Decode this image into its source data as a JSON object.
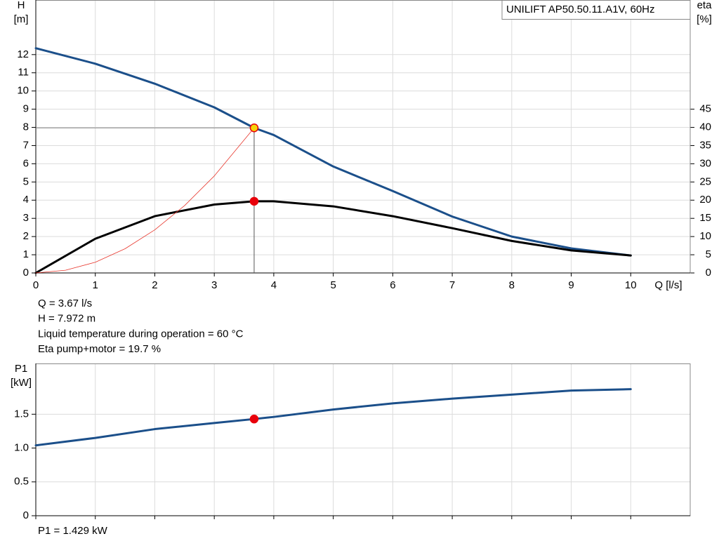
{
  "chart_data": [
    {
      "type": "line",
      "title": "UNILIFT AP50.50.11.A1V, 60Hz",
      "ylabel": [
        "H",
        "[m]"
      ],
      "y2label": [
        "eta",
        "[%]"
      ],
      "xlabel": "Q [l/s]",
      "xlim": [
        0,
        11
      ],
      "ylim": [
        0,
        15
      ],
      "y2lim": [
        0,
        75
      ],
      "xticks": [
        0,
        1,
        2,
        3,
        4,
        5,
        6,
        7,
        8,
        9,
        10
      ],
      "yticks": [
        0,
        1,
        2,
        3,
        4,
        5,
        6,
        7,
        8,
        9,
        10,
        11,
        12
      ],
      "y2ticks": [
        0,
        5,
        10,
        15,
        20,
        25,
        30,
        35,
        40,
        45
      ],
      "grid": true,
      "series": [
        {
          "color": "#1b4f8a",
          "width": 3,
          "x": [
            0,
            1,
            2,
            3,
            3.67,
            4,
            5,
            6,
            7,
            8,
            9,
            10
          ],
          "values": [
            12.35,
            11.5,
            10.4,
            9.1,
            7.972,
            7.58,
            5.85,
            4.5,
            3.1,
            2.0,
            1.35,
            0.96
          ]
        },
        {
          "color": "#000000",
          "width": 3,
          "axis": "y2",
          "x": [
            0,
            1,
            2,
            3,
            3.67,
            4,
            5,
            6,
            7,
            8,
            9,
            10
          ],
          "values": [
            0,
            9.4,
            15.6,
            18.8,
            19.7,
            19.7,
            18.3,
            15.6,
            12.3,
            8.8,
            6.2,
            4.8
          ]
        },
        {
          "color": "#e8362c",
          "width": 0.8,
          "x": [
            0,
            0.5,
            1,
            1.5,
            2,
            2.5,
            3,
            3.67
          ],
          "values": [
            0,
            0.15,
            0.59,
            1.33,
            2.37,
            3.7,
            5.33,
            7.972
          ]
        }
      ],
      "points": [
        {
          "x": 3.67,
          "y": 7.972,
          "color": "#f5d30a",
          "stroke": "#e8000b",
          "guides": true
        },
        {
          "x": 3.67,
          "y": 19.7,
          "axis": "y2",
          "color": "#e8000b",
          "stroke": "#e8000b"
        }
      ],
      "annotations": [
        "Q = 3.67 l/s",
        "H = 7.972 m",
        "Liquid temperature during operation = 60 °C",
        "Eta pump+motor = 19.7 %"
      ]
    },
    {
      "type": "line",
      "ylabel": [
        "P1",
        "[kW]"
      ],
      "xlim": [
        0,
        11
      ],
      "ylim": [
        0,
        2.25
      ],
      "xticks": [
        0,
        1,
        2,
        3,
        4,
        5,
        6,
        7,
        8,
        9,
        10
      ],
      "yticks": [
        0,
        0.5,
        {
          "value": 1.0,
          "label": "1.0"
        },
        1.5
      ],
      "grid": true,
      "series": [
        {
          "color": "#1b4f8a",
          "width": 3,
          "x": [
            0,
            1,
            2,
            3,
            3.67,
            4,
            5,
            6,
            7,
            8,
            9,
            10
          ],
          "values": [
            1.04,
            1.15,
            1.28,
            1.37,
            1.429,
            1.46,
            1.57,
            1.66,
            1.73,
            1.79,
            1.85,
            1.87
          ]
        }
      ],
      "points": [
        {
          "x": 3.67,
          "y": 1.429,
          "color": "#e8000b",
          "stroke": "#e8000b"
        }
      ],
      "annotations": [
        "P1 = 1.429 kW"
      ]
    }
  ]
}
